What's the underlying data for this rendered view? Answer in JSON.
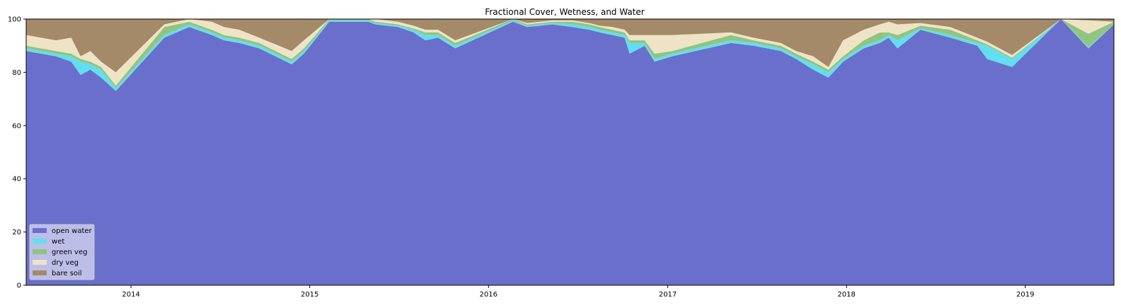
{
  "chart_data": {
    "type": "area",
    "stacked": true,
    "title": "Fractional Cover, Wetness, and Water",
    "xlabel": "",
    "ylabel": "",
    "xlim": [
      "2013-06-01",
      "2019-07-01"
    ],
    "ylim": [
      0,
      100
    ],
    "x_ticks": [
      "2014",
      "2015",
      "2016",
      "2017",
      "2018",
      "2019"
    ],
    "y_ticks": [
      0,
      20,
      40,
      60,
      80,
      100
    ],
    "grid": false,
    "legend_position": "lower-left",
    "x": [
      "2013-06-01",
      "2013-07-01",
      "2013-08-01",
      "2013-09-01",
      "2013-09-20",
      "2013-10-10",
      "2013-11-01",
      "2013-12-01",
      "2014-03-10",
      "2014-04-30",
      "2014-06-15",
      "2014-07-10",
      "2014-08-10",
      "2014-09-20",
      "2014-11-25",
      "2014-12-20",
      "2015-02-10",
      "2015-03-20",
      "2015-04-30",
      "2015-05-15",
      "2015-06-30",
      "2015-08-01",
      "2015-08-25",
      "2015-09-20",
      "2015-10-25",
      "2016-02-20",
      "2016-03-20",
      "2016-05-10",
      "2016-06-20",
      "2016-07-25",
      "2016-08-15",
      "2016-09-10",
      "2016-10-05",
      "2016-10-15",
      "2016-11-15",
      "2016-12-05",
      "2017-01-10",
      "2017-05-10",
      "2017-06-25",
      "2017-08-20",
      "2017-09-20",
      "2017-10-25",
      "2017-11-25",
      "2017-12-25",
      "2018-02-05",
      "2018-03-10",
      "2018-03-28",
      "2018-04-15",
      "2018-06-01",
      "2018-08-01",
      "2018-09-25",
      "2018-10-15",
      "2018-12-05",
      "2019-03-15",
      "2019-05-10",
      "2019-07-01"
    ],
    "series": [
      {
        "name": "open water",
        "color": "#6a6fcb",
        "values": [
          88,
          87,
          86,
          84,
          79,
          81,
          78,
          73,
          93,
          97,
          94,
          92,
          91,
          89,
          83,
          87,
          99,
          99,
          99,
          98,
          97,
          95,
          92,
          93,
          89,
          99,
          97,
          98,
          97,
          96,
          95,
          94,
          93,
          87,
          90,
          84,
          86,
          91,
          90,
          88,
          85,
          81,
          78,
          84,
          89,
          91,
          93,
          89,
          96,
          93,
          90,
          85,
          82,
          100,
          89,
          98
        ]
      },
      {
        "name": "wet",
        "color": "#5fdff0",
        "values": [
          1,
          1,
          1,
          2,
          5,
          2,
          3,
          1,
          1,
          1,
          1,
          1,
          1,
          1,
          1,
          1,
          0.5,
          0.5,
          0.5,
          0.5,
          0.5,
          1,
          2,
          1,
          1,
          0.5,
          0.5,
          0.5,
          1,
          1,
          1,
          1,
          1,
          4,
          1,
          1,
          1,
          1,
          1,
          1,
          1,
          2,
          2,
          1,
          1,
          1,
          1,
          3,
          0.5,
          1,
          1,
          5,
          3,
          0,
          0.5,
          0
        ]
      },
      {
        "name": "green veg",
        "color": "#8fc57e",
        "values": [
          1,
          1,
          1,
          1,
          1,
          1,
          1,
          1,
          3,
          1,
          1,
          1,
          1,
          1,
          1,
          1,
          0.5,
          0.5,
          0.5,
          0.5,
          0.5,
          0.5,
          1,
          1,
          1,
          0.5,
          0.5,
          0.5,
          1,
          1,
          1,
          1,
          1,
          1,
          1,
          2,
          1,
          2,
          1,
          1,
          1,
          1,
          1,
          1,
          2,
          3,
          1,
          2,
          1,
          2,
          1,
          0.5,
          0.5,
          0,
          5,
          1
        ]
      },
      {
        "name": "dry veg",
        "color": "#eee4c5",
        "values": [
          4,
          4,
          4,
          6,
          1,
          4,
          2,
          5,
          1,
          1,
          3,
          3,
          3,
          2,
          3,
          3,
          0.5,
          0.5,
          0.5,
          1,
          1,
          1,
          1,
          1,
          1,
          0.5,
          0.5,
          0.5,
          0.5,
          0.5,
          0.5,
          1,
          1,
          2,
          2,
          7,
          6,
          1,
          1,
          1,
          1,
          2,
          1,
          6,
          4,
          3,
          4,
          4,
          1,
          1,
          1,
          1,
          1,
          0,
          5,
          0
        ]
      },
      {
        "name": "bare soil",
        "color": "#a48a68",
        "values": [
          6,
          7,
          8,
          7,
          14,
          12,
          16,
          20,
          2,
          0,
          1,
          3,
          4,
          7,
          12,
          8,
          0,
          0,
          0,
          0,
          1,
          2.5,
          4,
          4,
          8,
          0,
          1.5,
          0.5,
          0.5,
          1.5,
          2.5,
          3,
          4,
          6,
          6,
          6,
          6,
          5,
          7,
          9,
          12,
          14,
          18,
          8,
          4,
          2,
          1,
          2,
          1.5,
          3,
          7,
          8.5,
          13.5,
          0,
          0.5,
          1
        ]
      }
    ]
  }
}
